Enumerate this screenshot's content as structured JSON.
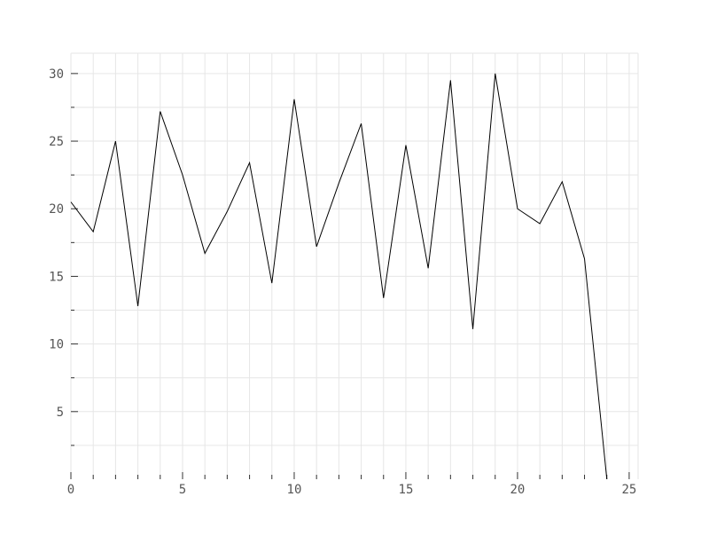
{
  "chart_data": {
    "type": "line",
    "title": "",
    "xlabel": "",
    "ylabel": "",
    "xlim": [
      0,
      25.4
    ],
    "ylim": [
      0,
      31.5
    ],
    "x_major_ticks": [
      0,
      5,
      10,
      15,
      20,
      25
    ],
    "x_minor_ticks": [
      1,
      2,
      3,
      4,
      6,
      7,
      8,
      9,
      11,
      12,
      13,
      14,
      16,
      17,
      18,
      19,
      21,
      22,
      23,
      24
    ],
    "y_major_ticks": [
      5,
      10,
      15,
      20,
      25,
      30
    ],
    "y_minor_ticks": [
      2.5,
      7.5,
      12.5,
      17.5,
      22.5,
      27.5
    ],
    "x_tick_labels": [
      "0",
      "5",
      "10",
      "15",
      "20",
      "25"
    ],
    "y_tick_labels": [
      "5",
      "10",
      "15",
      "20",
      "25",
      "30"
    ],
    "grid": true,
    "legend": "none",
    "series": [
      {
        "color": "#000000",
        "x": [
          0,
          1,
          2,
          3,
          4,
          5,
          6,
          7,
          8,
          9,
          10,
          11,
          12,
          13,
          14,
          15,
          16,
          17,
          18,
          19,
          20,
          21,
          22,
          23,
          24
        ],
        "y": [
          20.5,
          18.3,
          25.0,
          12.8,
          27.2,
          22.5,
          16.7,
          19.8,
          23.4,
          14.5,
          28.1,
          17.2,
          21.9,
          26.3,
          13.4,
          24.7,
          15.6,
          29.5,
          11.1,
          30.0,
          20.0,
          18.9,
          22.0,
          16.3,
          0.0
        ]
      }
    ]
  },
  "colors": {
    "grid": "#e6e6e6",
    "axis": "#333333",
    "tick_label": "#555555",
    "line": "#000000"
  }
}
